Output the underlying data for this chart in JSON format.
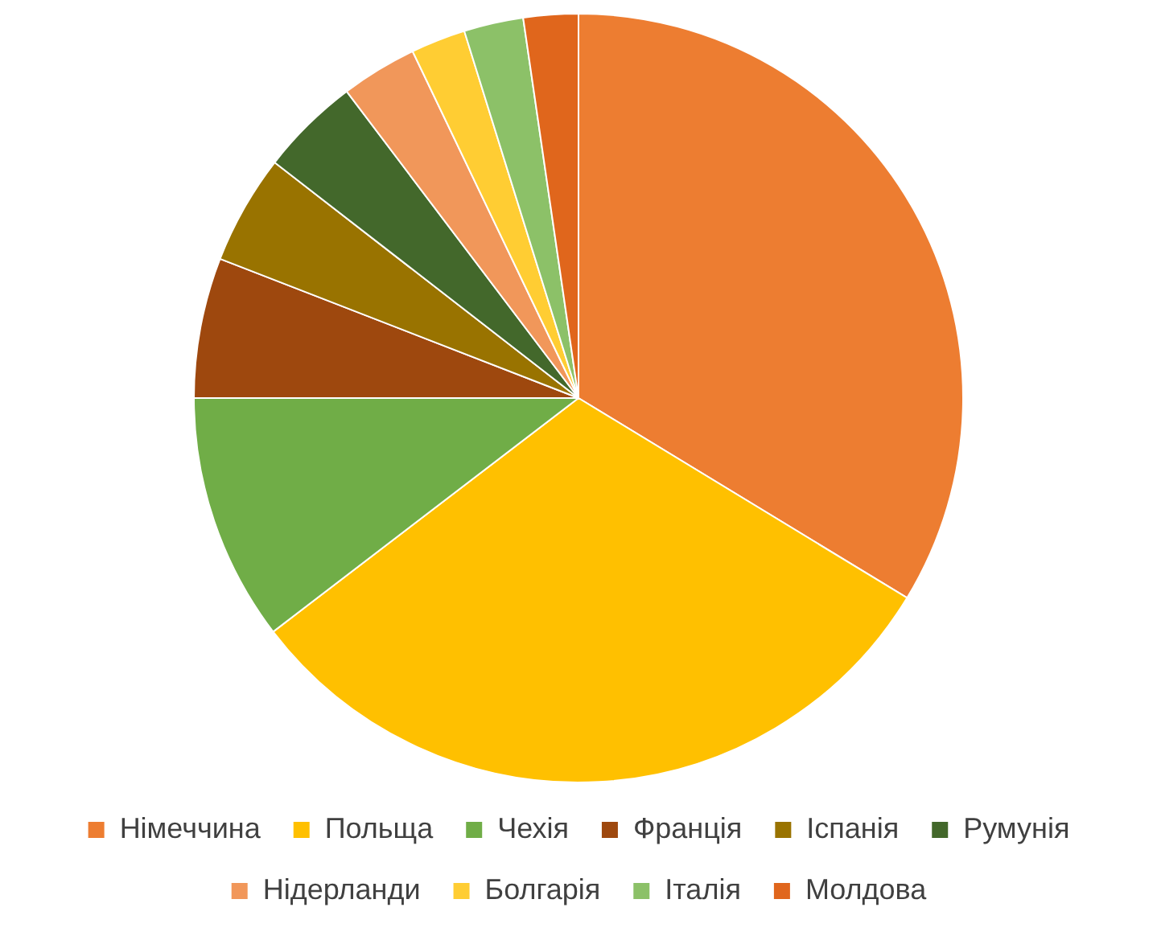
{
  "chart_data": {
    "type": "pie",
    "categories": [
      "Німеччина",
      "Польща",
      "Чехія",
      "Франція",
      "Іспанія",
      "Румунія",
      "Нідерланди",
      "Болгарія",
      "Італія",
      "Молдова"
    ],
    "values": [
      33.7,
      30.9,
      10.4,
      5.9,
      4.6,
      4.2,
      3.2,
      2.3,
      2.5,
      2.3
    ],
    "colors": [
      "#ed7d31",
      "#ffc000",
      "#70ad47",
      "#9e480e",
      "#997300",
      "#43682b",
      "#f1975a",
      "#ffcd33",
      "#8cc168",
      "#e0661c"
    ],
    "legend": "bottom"
  }
}
